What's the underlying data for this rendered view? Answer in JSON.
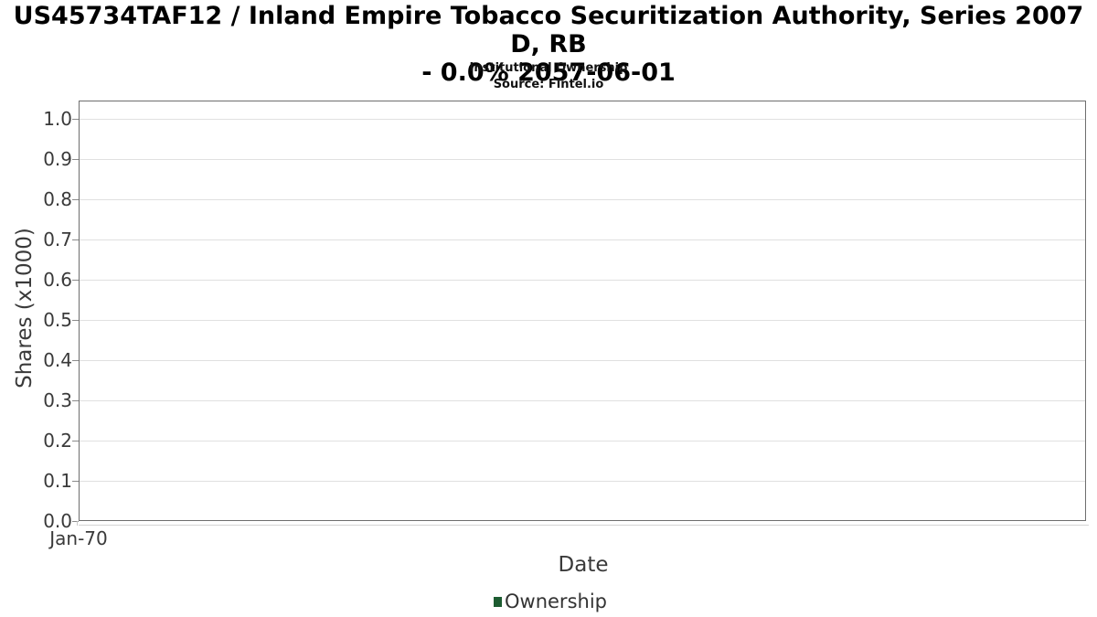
{
  "header": {
    "title_line1": "US45734TAF12 / Inland Empire Tobacco Securitization Authority, Series 2007 D, RB",
    "title_line2": "- 0.0% 2057-06-01",
    "subtitle": "Institutional Ownership",
    "source": "Source: Fintel.io"
  },
  "chart_data": {
    "type": "line",
    "title": "US45734TAF12 / Inland Empire Tobacco Securitization Authority, Series 2007 D, RB - 0.0% 2057-06-01",
    "subtitle": "Institutional Ownership",
    "source": "Source: Fintel.io",
    "xlabel": "Date",
    "ylabel": "Shares (x1000)",
    "x_ticks": [
      "Jan-70"
    ],
    "y_ticks": [
      0.0,
      0.1,
      0.2,
      0.3,
      0.4,
      0.5,
      0.6,
      0.7,
      0.8,
      0.9,
      1.0
    ],
    "ylim": [
      0.0,
      1.05
    ],
    "grid": "horizontal",
    "legend_position": "bottom",
    "series": [
      {
        "name": "Ownership",
        "color": "#1d5c31",
        "x": [],
        "values": []
      }
    ],
    "colors": {
      "grid": "#e0e0e0",
      "frame": "#6e6e6e",
      "tick": "#8a8a8a",
      "label_text": "#3a3a3a"
    }
  }
}
